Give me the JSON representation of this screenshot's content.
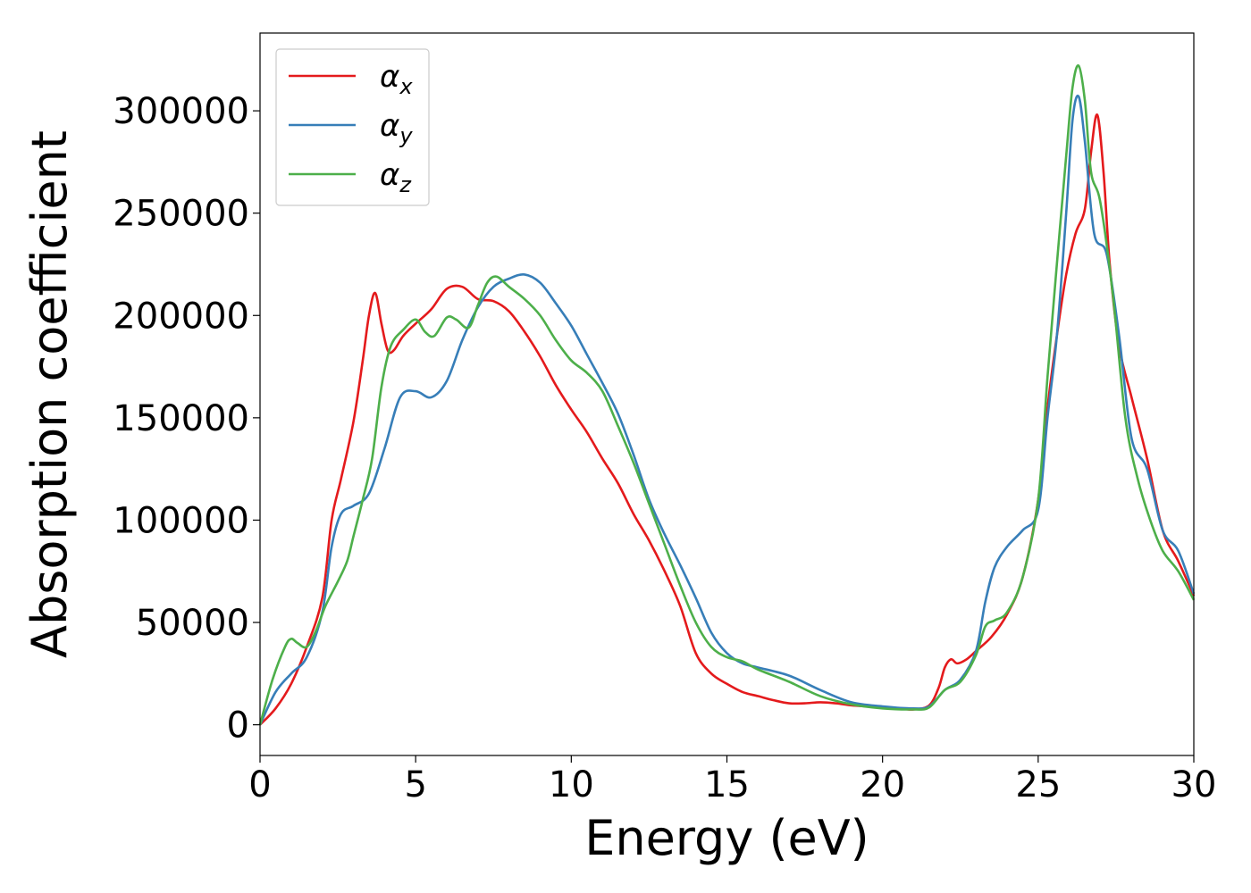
{
  "chart_data": {
    "type": "line",
    "xlabel": "Energy (eV)",
    "ylabel": "Absorption coefficient",
    "xlim": [
      0,
      30
    ],
    "ylim": [
      -15000,
      338000
    ],
    "xticks": [
      0,
      5,
      10,
      15,
      20,
      25,
      30
    ],
    "yticks": [
      0,
      50000,
      100000,
      150000,
      200000,
      250000,
      300000
    ],
    "grid": false,
    "legend_position": "top-left",
    "series": [
      {
        "name": "αx",
        "symbol": "α",
        "subscript": "x",
        "color": "#e41a1c",
        "x": [
          0,
          0.5,
          1,
          1.5,
          2,
          2.3,
          2.6,
          3,
          3.3,
          3.5,
          3.7,
          3.9,
          4.1,
          4.3,
          4.6,
          5,
          5.5,
          6,
          6.5,
          7,
          7.5,
          8,
          8.5,
          9,
          9.5,
          10,
          10.5,
          11,
          11.5,
          12,
          12.5,
          13,
          13.5,
          14,
          14.5,
          15,
          15.5,
          16,
          16.5,
          17,
          17.5,
          18,
          18.5,
          19,
          19.5,
          20,
          20.5,
          21,
          21.5,
          21.8,
          22,
          22.2,
          22.4,
          22.7,
          23,
          23.5,
          24,
          24.5,
          25,
          25.3,
          25.6,
          25.9,
          26.2,
          26.5,
          26.7,
          26.9,
          27.1,
          27.3,
          27.6,
          28,
          28.5,
          29,
          29.5,
          30
        ],
        "y": [
          0,
          8000,
          20000,
          38000,
          62000,
          100000,
          120000,
          148000,
          178000,
          200000,
          211000,
          196000,
          183000,
          183000,
          190000,
          196000,
          203000,
          213000,
          214000,
          208000,
          207000,
          202000,
          192000,
          180000,
          166000,
          154000,
          143000,
          130000,
          118000,
          103000,
          90000,
          75000,
          58000,
          35000,
          25000,
          20000,
          16000,
          14000,
          12000,
          10500,
          10500,
          11000,
          10500,
          9500,
          9000,
          8500,
          8000,
          7500,
          9500,
          18000,
          28000,
          32000,
          30000,
          32000,
          36000,
          43000,
          54000,
          72000,
          110000,
          155000,
          190000,
          220000,
          240000,
          252000,
          280000,
          298000,
          270000,
          225000,
          185000,
          160000,
          130000,
          95000,
          80000,
          63000
        ]
      },
      {
        "name": "αy",
        "symbol": "α",
        "subscript": "y",
        "color": "#377eb8",
        "x": [
          0,
          0.5,
          1,
          1.5,
          2,
          2.3,
          2.6,
          3,
          3.5,
          4,
          4.5,
          5,
          5.5,
          6,
          6.5,
          7,
          7.5,
          8,
          8.5,
          9,
          9.5,
          10,
          10.5,
          11,
          11.5,
          12,
          12.5,
          13,
          13.5,
          14,
          14.5,
          15,
          15.5,
          16,
          17,
          18,
          19,
          20,
          21,
          21.5,
          22,
          22.5,
          23,
          23.3,
          23.6,
          24,
          24.5,
          25,
          25.3,
          25.6,
          25.9,
          26.1,
          26.3,
          26.5,
          26.8,
          27.2,
          27.6,
          28,
          28.5,
          29,
          29.5,
          30
        ],
        "y": [
          0,
          16000,
          25000,
          33000,
          55000,
          87000,
          103000,
          107000,
          113000,
          135000,
          160000,
          163000,
          160000,
          168000,
          188000,
          204000,
          214000,
          218000,
          220000,
          216000,
          206000,
          195000,
          181000,
          167000,
          152000,
          132000,
          110000,
          93000,
          78000,
          62000,
          45000,
          35000,
          30000,
          28000,
          24000,
          17000,
          11000,
          9000,
          8000,
          9000,
          17000,
          22000,
          36000,
          60000,
          77000,
          87000,
          95000,
          105000,
          150000,
          190000,
          250000,
          295000,
          307000,
          285000,
          240000,
          230000,
          190000,
          140000,
          125000,
          95000,
          85000,
          64000
        ]
      },
      {
        "name": "αz",
        "symbol": "α",
        "subscript": "z",
        "color": "#4daf4a",
        "x": [
          0,
          0.4,
          0.8,
          1,
          1.2,
          1.5,
          1.8,
          2.1,
          2.5,
          2.8,
          3,
          3.3,
          3.6,
          3.9,
          4.2,
          4.6,
          5,
          5.3,
          5.6,
          6,
          6.3,
          6.7,
          7,
          7.3,
          7.6,
          8,
          8.5,
          9,
          9.5,
          10,
          10.5,
          11,
          11.5,
          12,
          12.5,
          13,
          13.5,
          14,
          14.5,
          15,
          15.5,
          16,
          17,
          18,
          19,
          20,
          21,
          21.5,
          22,
          22.5,
          23,
          23.3,
          23.6,
          24,
          24.5,
          25,
          25.3,
          25.6,
          25.9,
          26.1,
          26.3,
          26.5,
          26.7,
          27,
          27.4,
          27.8,
          28.2,
          28.6,
          29,
          29.5,
          30
        ],
        "y": [
          0,
          22000,
          38000,
          42000,
          40000,
          38000,
          46000,
          58000,
          70000,
          80000,
          92000,
          110000,
          130000,
          165000,
          185000,
          193000,
          198000,
          192000,
          190000,
          199000,
          198000,
          194000,
          205000,
          216000,
          219000,
          214000,
          208000,
          200000,
          188000,
          178000,
          172000,
          163000,
          146000,
          128000,
          108000,
          88000,
          68000,
          50000,
          38000,
          33000,
          31000,
          27000,
          21000,
          14000,
          10000,
          8000,
          7500,
          8500,
          17000,
          21000,
          34000,
          48000,
          51000,
          55000,
          72000,
          110000,
          170000,
          225000,
          278000,
          311000,
          322000,
          305000,
          270000,
          255000,
          210000,
          150000,
          120000,
          100000,
          85000,
          75000,
          61000
        ]
      }
    ]
  }
}
